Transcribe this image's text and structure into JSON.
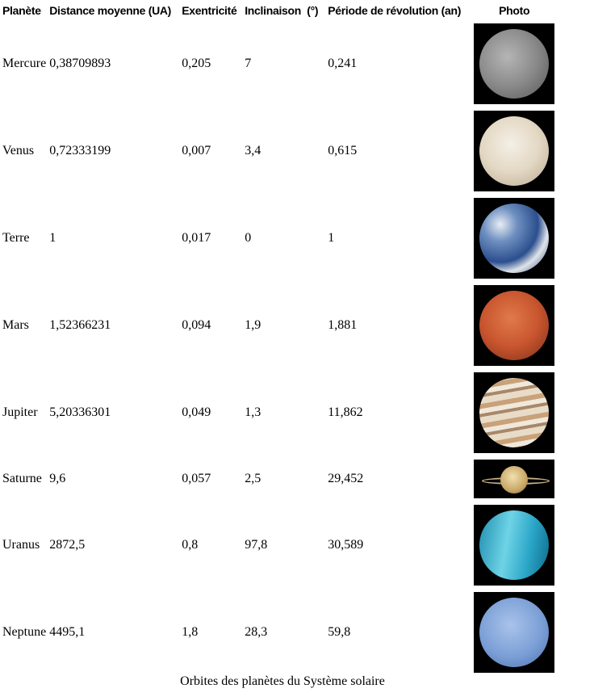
{
  "headers": [
    "Planète",
    "Distance moyenne (UA)",
    "Exentricité",
    "Inclinaison  (°)",
    "Période de révolution (an)",
    "Photo"
  ],
  "rows": [
    {
      "planet": "Mercure",
      "distance": "0,38709893",
      "eccentricity": "0,205",
      "inclination": "7",
      "period": "0,241",
      "photo": "mercury-photo"
    },
    {
      "planet": "Venus",
      "distance": "0,72333199",
      "eccentricity": "0,007",
      "inclination": "3,4",
      "period": "0,615",
      "photo": "venus-photo"
    },
    {
      "planet": "Terre",
      "distance": "1",
      "eccentricity": "0,017",
      "inclination": "0",
      "period": "1",
      "photo": "earth-photo"
    },
    {
      "planet": "Mars",
      "distance": "1,52366231",
      "eccentricity": "0,094",
      "inclination": "1,9",
      "period": "1,881",
      "photo": "mars-photo"
    },
    {
      "planet": "Jupiter",
      "distance": "5,20336301",
      "eccentricity": "0,049",
      "inclination": "1,3",
      "period": "11,862",
      "photo": "jupiter-photo"
    },
    {
      "planet": "Saturne",
      "distance": "9,6",
      "eccentricity": "0,057",
      "inclination": "2,5",
      "period": "29,452",
      "photo": "saturn-photo"
    },
    {
      "planet": "Uranus",
      "distance": "2872,5",
      "eccentricity": "0,8",
      "inclination": "97,8",
      "period": "30,589",
      "photo": "uranus-photo"
    },
    {
      "planet": "Neptune",
      "distance": "4495,1",
      "eccentricity": "1,8",
      "inclination": "28,3",
      "period": "59,8",
      "photo": "neptune-photo"
    }
  ],
  "caption": "Orbites des planètes du Système solaire"
}
